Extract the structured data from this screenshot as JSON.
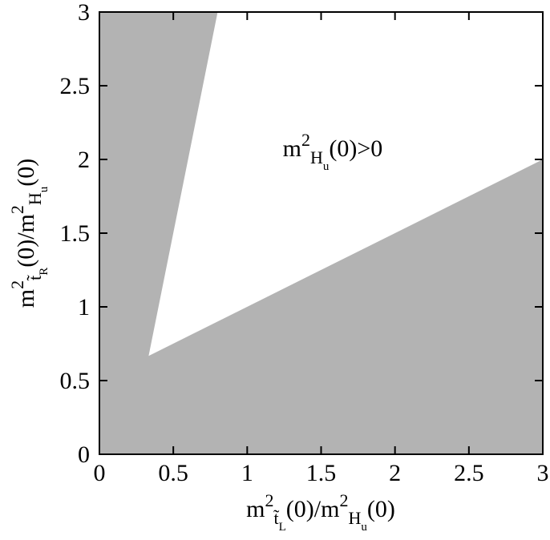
{
  "chart_data": {
    "type": "region",
    "background_color": "#b3b3b3",
    "polygon": {
      "color": "#ffffff",
      "x": [
        0.333,
        0.8,
        3,
        3
      ],
      "y": [
        0.667,
        3,
        3,
        2
      ]
    },
    "xlim": [
      0,
      3
    ],
    "ylim": [
      0,
      3
    ],
    "xticks": [
      0,
      0.5,
      1,
      1.5,
      2,
      2.5,
      3
    ],
    "yticks": [
      0,
      0.5,
      1,
      1.5,
      2,
      2.5,
      3
    ],
    "xlabel": [
      {
        "text": "m",
        "pos": "base"
      },
      {
        "text": "2",
        "pos": "sup"
      },
      {
        "text": "t̃",
        "pos": "sub"
      },
      {
        "text": "L",
        "pos": "subsub"
      },
      {
        "text": "(0)/m",
        "pos": "base"
      },
      {
        "text": "2",
        "pos": "sup"
      },
      {
        "text": "H",
        "pos": "sub"
      },
      {
        "text": "u",
        "pos": "subsub"
      },
      {
        "text": "(0)",
        "pos": "base"
      }
    ],
    "ylabel": [
      {
        "text": "m",
        "pos": "base"
      },
      {
        "text": "2",
        "pos": "sup"
      },
      {
        "text": "t̃",
        "pos": "sub"
      },
      {
        "text": "R",
        "pos": "subsub"
      },
      {
        "text": "(0)/m",
        "pos": "base"
      },
      {
        "text": "2",
        "pos": "sup"
      },
      {
        "text": "H",
        "pos": "sub"
      },
      {
        "text": "u",
        "pos": "subsub"
      },
      {
        "text": "(0)",
        "pos": "base"
      }
    ],
    "annotation": [
      {
        "text": "m",
        "pos": "base"
      },
      {
        "text": "2",
        "pos": "sup"
      },
      {
        "text": "H",
        "pos": "sub"
      },
      {
        "text": "u",
        "pos": "subsub"
      },
      {
        "text": "(0)>0",
        "pos": "base"
      }
    ]
  }
}
